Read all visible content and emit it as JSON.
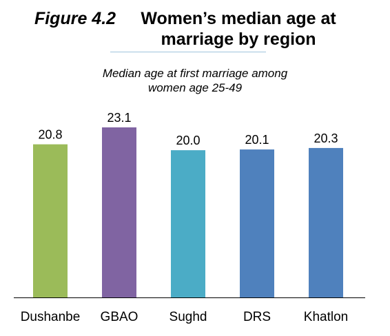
{
  "chart_data": {
    "type": "bar",
    "title_prefix": "Figure 4.2",
    "title": "Women’s median age at marriage by region",
    "subtitle_line1": "Median age at first marriage among",
    "subtitle_line2": "women age 25-49",
    "categories": [
      "Dushanbe",
      "GBAO",
      "Sughd",
      "DRS",
      "Khatlon"
    ],
    "values": [
      20.8,
      23.1,
      20.0,
      20.1,
      20.3
    ],
    "value_labels": [
      "20.8",
      "23.1",
      "20.0",
      "20.1",
      "20.3"
    ],
    "colors": [
      "#9bbb59",
      "#8064a2",
      "#4bacc6",
      "#4f81bd",
      "#4f81bd"
    ],
    "ylim": [
      0,
      23.1
    ],
    "grid": false,
    "legend": "none",
    "xlabel": "",
    "ylabel": ""
  }
}
